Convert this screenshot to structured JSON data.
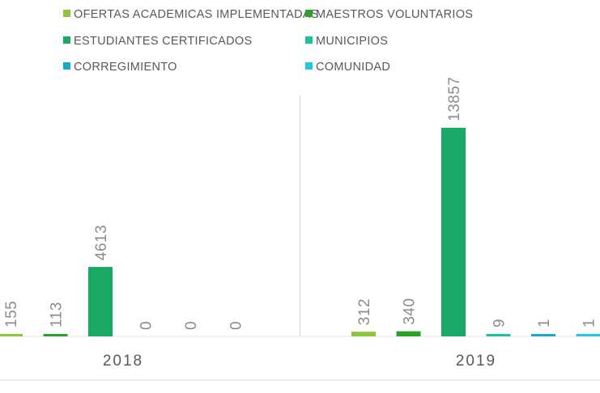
{
  "chart_data": {
    "type": "bar",
    "categories": [
      "2018",
      "2019"
    ],
    "series": [
      {
        "name": "OFERTAS ACADEMICAS IMPLEMENTADAS",
        "color": "#8cc63f",
        "values": [
          155,
          312
        ]
      },
      {
        "name": "MAESTROS VOLUNTARIOS",
        "color": "#2ca02c",
        "values": [
          113,
          340
        ]
      },
      {
        "name": "ESTUDIANTES CERTIFICADOS",
        "color": "#1aa866",
        "values": [
          4613,
          13857
        ]
      },
      {
        "name": "MUNICIPIOS",
        "color": "#19c3a0",
        "values": [
          0,
          9
        ]
      },
      {
        "name": "CORREGIMIENTO",
        "color": "#17a9c9",
        "values": [
          0,
          1
        ]
      },
      {
        "name": "COMUNIDAD",
        "color": "#1ec8e6",
        "values": [
          0,
          1
        ]
      }
    ],
    "ylim": [
      0,
      13857
    ],
    "legend_position": "top",
    "grid": false
  }
}
